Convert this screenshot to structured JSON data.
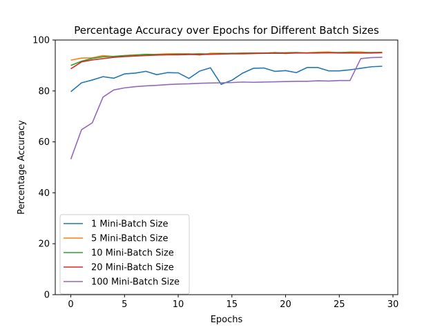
{
  "chart_data": {
    "type": "line",
    "title": "Percentage Accuracy over Epochs for Different Batch Sizes",
    "xlabel": "Epochs",
    "ylabel": "Percentage Accuracy",
    "xlim": [
      -1.45,
      30.45
    ],
    "ylim": [
      0,
      100
    ],
    "xticks": [
      0,
      5,
      10,
      15,
      20,
      25,
      30
    ],
    "yticks": [
      0,
      20,
      40,
      60,
      80,
      100
    ],
    "grid": false,
    "legend_position": "lower-left",
    "x": [
      0,
      1,
      2,
      3,
      4,
      5,
      6,
      7,
      8,
      9,
      10,
      11,
      12,
      13,
      14,
      15,
      16,
      17,
      18,
      19,
      20,
      21,
      22,
      23,
      24,
      25,
      26,
      27,
      28,
      29
    ],
    "series": [
      {
        "name": "1 Mini-Batch Size",
        "color": "#1f77b4",
        "values": [
          79.7,
          83.2,
          84.3,
          85.6,
          85.0,
          86.7,
          87.0,
          87.7,
          86.4,
          87.2,
          87.1,
          84.9,
          87.8,
          89.1,
          82.6,
          84.2,
          87.0,
          88.9,
          89.0,
          87.7,
          88.0,
          87.2,
          89.2,
          89.2,
          87.9,
          87.9,
          88.3,
          88.9,
          89.5,
          89.7
        ]
      },
      {
        "name": "5 Mini-Batch Size",
        "color": "#ff7f0e",
        "values": [
          92.1,
          92.9,
          93.0,
          93.9,
          93.5,
          93.9,
          94.2,
          94.2,
          94.4,
          94.6,
          94.6,
          94.6,
          94.1,
          94.8,
          94.8,
          94.7,
          94.9,
          94.9,
          94.8,
          95.1,
          94.7,
          95.0,
          95.0,
          95.2,
          95.3,
          95.0,
          95.3,
          95.3,
          95.0,
          95.2
        ]
      },
      {
        "name": "10 Mini-Batch Size",
        "color": "#2ca02c",
        "values": [
          90.0,
          91.7,
          92.8,
          93.4,
          93.6,
          93.9,
          94.1,
          94.4,
          94.3,
          94.3,
          94.5,
          94.5,
          94.6,
          94.5,
          94.7,
          94.8,
          94.8,
          94.9,
          94.9,
          95.0,
          95.0,
          95.1,
          94.9,
          95.0,
          95.0,
          95.1,
          95.1,
          95.0,
          95.1,
          95.1
        ]
      },
      {
        "name": "20 Mini-Batch Size",
        "color": "#d62728",
        "values": [
          88.7,
          91.4,
          92.2,
          92.7,
          93.2,
          93.5,
          93.7,
          93.9,
          94.1,
          94.2,
          94.2,
          94.3,
          94.3,
          94.4,
          94.5,
          94.6,
          94.6,
          94.7,
          94.8,
          94.8,
          94.8,
          94.9,
          94.9,
          94.9,
          95.0,
          94.9,
          94.9,
          94.9,
          94.9,
          95.0
        ]
      },
      {
        "name": "100 Mini-Batch Size",
        "color": "#9467bd",
        "values": [
          53.2,
          64.8,
          67.5,
          77.6,
          80.4,
          81.2,
          81.7,
          82.0,
          82.2,
          82.5,
          82.7,
          82.8,
          83.0,
          83.1,
          83.2,
          83.3,
          83.5,
          83.4,
          83.5,
          83.6,
          83.7,
          83.8,
          83.8,
          84.0,
          83.9,
          84.1,
          84.1,
          92.7,
          93.1,
          93.2
        ]
      }
    ]
  }
}
